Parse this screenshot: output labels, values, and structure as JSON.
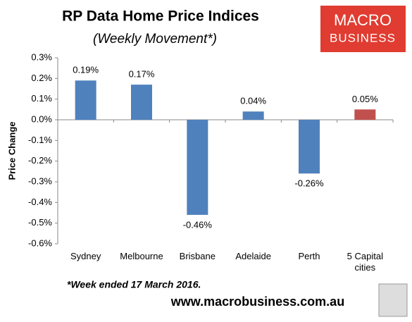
{
  "chart_data": {
    "type": "bar",
    "title": "RP Data Home Price Indices",
    "subtitle": "(Weekly Movement*)",
    "y_label": "Price Change",
    "note": "*Week ended 17 March 2016.",
    "source": "www.macrobusiness.com.au",
    "logo": [
      "MACRO",
      "BUSINESS"
    ],
    "categories": [
      "Sydney",
      "Melbourne",
      "Brisbane",
      "Adelaide",
      "Perth",
      "5 Capital cities"
    ],
    "values": [
      0.19,
      0.17,
      -0.46,
      0.04,
      -0.26,
      0.05
    ],
    "value_labels": [
      "0.19%",
      "0.17%",
      "-0.46%",
      "0.04%",
      "-0.26%",
      "0.05%"
    ],
    "colors": [
      "#4f81bd",
      "#4f81bd",
      "#4f81bd",
      "#4f81bd",
      "#4f81bd",
      "#c0504d"
    ],
    "ylim": [
      -0.6,
      0.3
    ],
    "yticks": [
      {
        "value": -0.6,
        "label": "-0.6%"
      },
      {
        "value": -0.5,
        "label": "-0.5%"
      },
      {
        "value": -0.4,
        "label": "-0.4%"
      },
      {
        "value": -0.3,
        "label": "-0.3%"
      },
      {
        "value": -0.2,
        "label": "-0.2%"
      },
      {
        "value": -0.1,
        "label": "-0.1%"
      },
      {
        "value": 0,
        "label": "0.0%"
      },
      {
        "value": 0.1,
        "label": "0.1%"
      },
      {
        "value": 0.2,
        "label": "0.2%"
      },
      {
        "value": 0.3,
        "label": "0.3%"
      }
    ],
    "grid": false
  }
}
